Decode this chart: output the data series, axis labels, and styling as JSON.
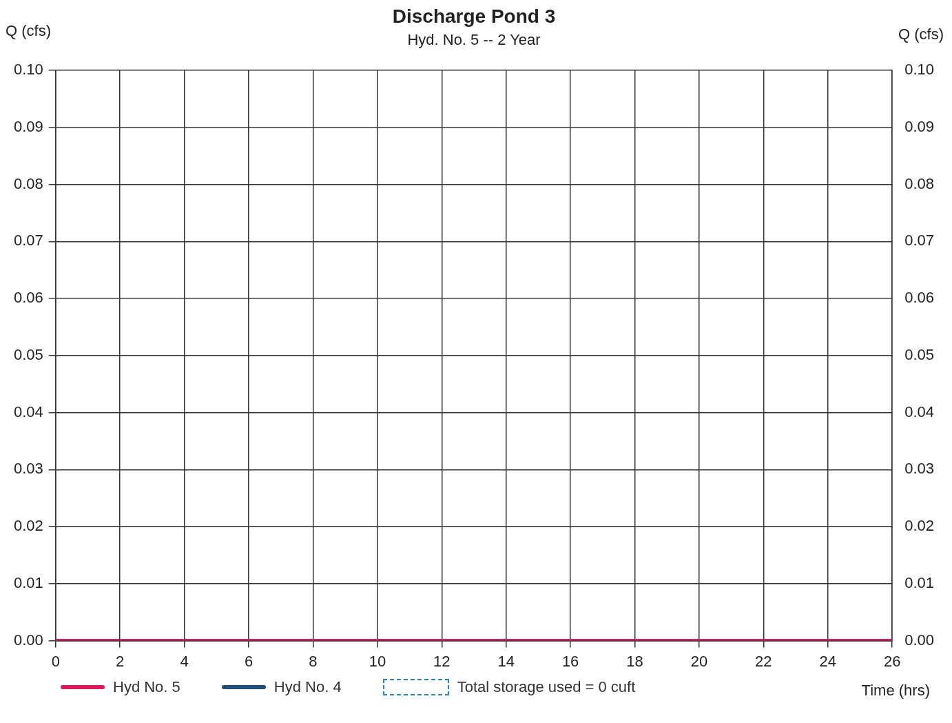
{
  "chart_data": {
    "type": "line",
    "title": "Discharge Pond 3",
    "subtitle": "Hyd. No. 5 -- 2 Year",
    "xlabel": "Time (hrs)",
    "ylabel": "Q (cfs)",
    "y2label": "Q (cfs)",
    "x": [
      0,
      26
    ],
    "series": [
      {
        "name": "Hyd No. 5",
        "color": "#d81b5a",
        "values": [
          0,
          0
        ]
      },
      {
        "name": "Hyd No. 4",
        "color": "#1f4e79",
        "values": [
          null,
          null
        ]
      }
    ],
    "xlim": [
      0,
      26
    ],
    "xticks": [
      0,
      2,
      4,
      6,
      8,
      10,
      12,
      14,
      16,
      18,
      20,
      22,
      24,
      26
    ],
    "ylim": [
      0,
      0.1
    ],
    "yticks": [
      {
        "value": 0,
        "label": "0.00"
      },
      {
        "value": 0.01,
        "label": "0.01"
      },
      {
        "value": 0.02,
        "label": "0.02"
      },
      {
        "value": 0.03,
        "label": "0.03"
      },
      {
        "value": 0.04,
        "label": "0.04"
      },
      {
        "value": 0.05,
        "label": "0.05"
      },
      {
        "value": 0.06,
        "label": "0.06"
      },
      {
        "value": 0.07,
        "label": "0.07"
      },
      {
        "value": 0.08,
        "label": "0.08"
      },
      {
        "value": 0.09,
        "label": "0.09"
      },
      {
        "value": 0.1,
        "label": "0.10"
      }
    ],
    "y2lim": [
      0,
      0.1
    ],
    "y2ticks": [
      {
        "value": 0,
        "label": "0.00"
      },
      {
        "value": 0.01,
        "label": "0.01"
      },
      {
        "value": 0.02,
        "label": "0.02"
      },
      {
        "value": 0.03,
        "label": "0.03"
      },
      {
        "value": 0.04,
        "label": "0.04"
      },
      {
        "value": 0.05,
        "label": "0.05"
      },
      {
        "value": 0.06,
        "label": "0.06"
      },
      {
        "value": 0.07,
        "label": "0.07"
      },
      {
        "value": 0.08,
        "label": "0.08"
      },
      {
        "value": 0.09,
        "label": "0.09"
      },
      {
        "value": 0.1,
        "label": "0.10"
      }
    ],
    "grid": true,
    "legend": "bottom",
    "marker": "none",
    "line_style": "solid",
    "annotations": [
      "Total storage used = 0 cuft"
    ]
  }
}
